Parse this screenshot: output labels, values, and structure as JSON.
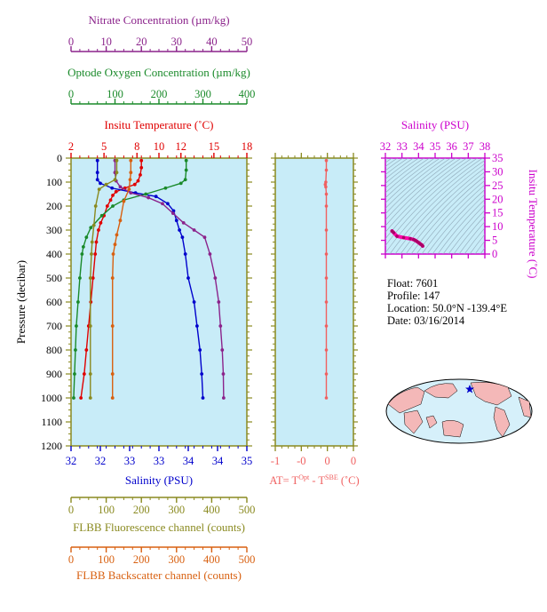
{
  "chart_data": {
    "type": "line",
    "main_profile": {
      "y_axis": {
        "label": "Pressure (decibar)",
        "range": [
          0,
          1200
        ],
        "inverted": true,
        "ticks": [
          0,
          100,
          200,
          300,
          400,
          500,
          600,
          700,
          800,
          900,
          1000,
          1100,
          1200
        ]
      },
      "x_axes": [
        {
          "id": "nitrate",
          "label": "Nitrate Concentration (µm/kg)",
          "range": [
            0,
            50
          ],
          "ticks": [
            0,
            10,
            20,
            30,
            40,
            50
          ],
          "color": "#8b238b"
        },
        {
          "id": "oxygen",
          "label": "Optode Oxygen Concentration (µm/kg)",
          "range": [
            0,
            400
          ],
          "ticks": [
            0,
            100,
            200,
            300,
            400
          ],
          "color": "#1a8a2a"
        },
        {
          "id": "temperature",
          "label": "Insitu Temperature (˚C)",
          "range": [
            2,
            18
          ],
          "ticks": [
            2,
            5,
            8,
            10,
            12,
            15,
            18
          ],
          "color": "#e00000"
        },
        {
          "id": "salinity",
          "label": "Salinity (PSU)",
          "range": [
            32,
            35
          ],
          "ticks": [
            32,
            32.5,
            33,
            33.5,
            34,
            34.5,
            35
          ],
          "tick_labels": [
            "32",
            "32",
            "33",
            "33",
            "34",
            "34",
            "35"
          ],
          "color": "#0000cc"
        },
        {
          "id": "fluorescence",
          "label": "FLBB Fluorescence channel (counts)",
          "range": [
            0,
            500
          ],
          "ticks": [
            0,
            100,
            200,
            300,
            400,
            500
          ],
          "color": "#8a8a20"
        },
        {
          "id": "backscatter",
          "label": "FLBB Backscatter channel (counts)",
          "range": [
            0,
            500
          ],
          "ticks": [
            0,
            100,
            200,
            300,
            400,
            500
          ],
          "color": "#d86010"
        }
      ],
      "series": [
        {
          "axis": "temperature",
          "points": [
            [
              8.4,
              10
            ],
            [
              8.4,
              40
            ],
            [
              8.3,
              70
            ],
            [
              8.1,
              95
            ],
            [
              7.8,
              110
            ],
            [
              6.9,
              125
            ],
            [
              6.1,
              140
            ],
            [
              5.8,
              155
            ],
            [
              5.6,
              175
            ],
            [
              5.3,
              200
            ],
            [
              5.0,
              240
            ],
            [
              4.7,
              270
            ],
            [
              4.5,
              300
            ],
            [
              4.3,
              350
            ],
            [
              4.2,
              400
            ],
            [
              4.0,
              500
            ],
            [
              3.8,
              600
            ],
            [
              3.6,
              700
            ],
            [
              3.4,
              800
            ],
            [
              3.2,
              900
            ],
            [
              2.9,
              1000
            ]
          ]
        },
        {
          "axis": "salinity",
          "points": [
            [
              32.45,
              10
            ],
            [
              32.45,
              60
            ],
            [
              32.45,
              90
            ],
            [
              32.5,
              105
            ],
            [
              32.7,
              125
            ],
            [
              33.1,
              145
            ],
            [
              33.45,
              160
            ],
            [
              33.65,
              190
            ],
            [
              33.75,
              220
            ],
            [
              33.8,
              260
            ],
            [
              33.85,
              300
            ],
            [
              33.9,
              330
            ],
            [
              33.95,
              400
            ],
            [
              34.0,
              500
            ],
            [
              34.1,
              600
            ],
            [
              34.15,
              700
            ],
            [
              34.2,
              800
            ],
            [
              34.23,
              900
            ],
            [
              34.25,
              1000
            ]
          ]
        },
        {
          "axis": "oxygen",
          "points": [
            [
              262,
              10
            ],
            [
              262,
              50
            ],
            [
              260,
              90
            ],
            [
              250,
              105
            ],
            [
              215,
              125
            ],
            [
              170,
              150
            ],
            [
              120,
              175
            ],
            [
              95,
              200
            ],
            [
              70,
              240
            ],
            [
              45,
              290
            ],
            [
              35,
              330
            ],
            [
              28,
              370
            ],
            [
              25,
              400
            ],
            [
              20,
              500
            ],
            [
              16,
              600
            ],
            [
              12,
              700
            ],
            [
              10,
              800
            ],
            [
              8,
              900
            ],
            [
              6,
              1000
            ]
          ]
        },
        {
          "axis": "nitrate",
          "points": [
            [
              12.5,
              10
            ],
            [
              12.5,
              60
            ],
            [
              12.8,
              95
            ],
            [
              14,
              120
            ],
            [
              17,
              145
            ],
            [
              22,
              165
            ],
            [
              26,
              190
            ],
            [
              29,
              230
            ],
            [
              32,
              270
            ],
            [
              35,
              300
            ],
            [
              38,
              330
            ],
            [
              39.5,
              400
            ],
            [
              41,
              500
            ],
            [
              42,
              600
            ],
            [
              42.5,
              700
            ],
            [
              43,
              800
            ],
            [
              43.3,
              900
            ],
            [
              43.4,
              1000
            ]
          ]
        },
        {
          "axis": "fluorescence",
          "points": [
            [
              130,
              10
            ],
            [
              130,
              60
            ],
            [
              125,
              90
            ],
            [
              100,
              110
            ],
            [
              80,
              130
            ],
            [
              70,
              200
            ],
            [
              65,
              280
            ],
            [
              60,
              350
            ],
            [
              58,
              400
            ],
            [
              55,
              500
            ],
            [
              55,
              700
            ],
            [
              55,
              900
            ],
            [
              55,
              1000
            ]
          ]
        },
        {
          "axis": "backscatter",
          "points": [
            [
              170,
              10
            ],
            [
              170,
              60
            ],
            [
              168,
              90
            ],
            [
              165,
              130
            ],
            [
              150,
              180
            ],
            [
              140,
              260
            ],
            [
              130,
              320
            ],
            [
              125,
              360
            ],
            [
              120,
              400
            ],
            [
              118,
              500
            ],
            [
              118,
              700
            ],
            [
              118,
              900
            ],
            [
              118,
              1000
            ]
          ]
        }
      ]
    },
    "delta_profile": {
      "label": "AT= Tᴼᵖᵗ - Tˢᴮᴱ (˚C)",
      "label_parts": {
        "prefix": "AT= T",
        "sup1": "Opt",
        "mid": " - T",
        "sup2": "SBE",
        "suffix": " (˚C)"
      },
      "x_range": [
        -1,
        0.5
      ],
      "ticks": [
        -1,
        -0.5,
        0,
        0.5
      ],
      "tick_labels": [
        "-1",
        "-0",
        "0",
        "0"
      ],
      "color": "#f06060",
      "points": [
        [
          -0.02,
          10
        ],
        [
          -0.02,
          50
        ],
        [
          -0.03,
          100
        ],
        [
          -0.04,
          110
        ],
        [
          -0.03,
          120
        ],
        [
          -0.02,
          150
        ],
        [
          -0.02,
          200
        ],
        [
          -0.02,
          300
        ],
        [
          -0.02,
          400
        ],
        [
          -0.02,
          500
        ],
        [
          -0.02,
          600
        ],
        [
          -0.02,
          700
        ],
        [
          -0.02,
          800
        ],
        [
          -0.02,
          900
        ],
        [
          -0.02,
          1000
        ]
      ]
    },
    "ts_diagram": {
      "title": "Salinity (PSU)",
      "x_range": [
        32,
        38
      ],
      "x_ticks": [
        32,
        33,
        34,
        35,
        36,
        37,
        38
      ],
      "y_label": "Insitu Temperature (˚C)",
      "y_range": [
        0,
        35
      ],
      "y_ticks": [
        0,
        5,
        10,
        15,
        20,
        25,
        30,
        35
      ],
      "color": "#ff00aa",
      "points": [
        [
          32.4,
          8.4
        ],
        [
          32.5,
          7.8
        ],
        [
          32.7,
          6.5
        ],
        [
          33.1,
          6.0
        ],
        [
          33.5,
          5.6
        ],
        [
          33.7,
          5.3
        ],
        [
          33.8,
          5.0
        ],
        [
          33.9,
          4.6
        ],
        [
          34.0,
          4.2
        ],
        [
          34.1,
          3.7
        ],
        [
          34.2,
          3.3
        ],
        [
          34.25,
          2.9
        ]
      ]
    }
  },
  "float_info": {
    "float": "Float:  7601",
    "profile": "Profile:  147",
    "location": "Location:  50.0°N  -139.4°E",
    "date": "Date:  03/16/2014"
  },
  "colors": {
    "plot_bg": "#c8ecf8",
    "axis": "#8a8a20"
  },
  "map": {
    "land": "#f4b8b8",
    "ocean": "#d6f0fa",
    "marker": "#0000cc"
  }
}
